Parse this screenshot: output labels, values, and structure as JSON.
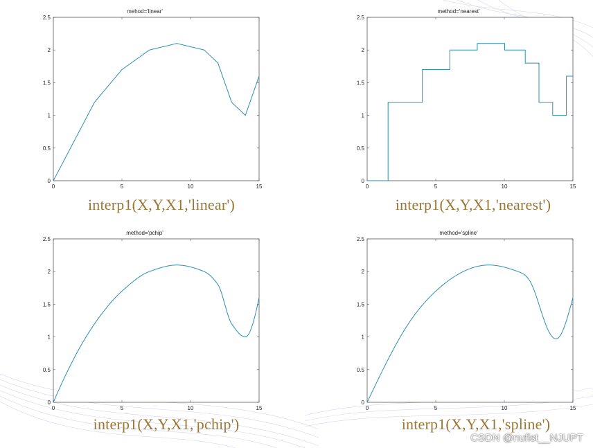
{
  "chart_data": [
    {
      "type": "line",
      "title": "mehod='linear'",
      "caption": "interp1(X,Y,X1,'linear')",
      "method": "linear",
      "xlim": [
        0,
        15
      ],
      "ylim": [
        0,
        2.5
      ],
      "xticks": [
        "0",
        "5",
        "10",
        "15"
      ],
      "yticks": [
        "0",
        "0.5",
        "1",
        "1.5",
        "2",
        "2.5"
      ],
      "x": [
        0,
        3,
        5,
        7,
        9,
        11,
        12,
        13,
        14,
        15
      ],
      "y": [
        0,
        1.2,
        1.7,
        2.0,
        2.1,
        2.0,
        1.8,
        1.2,
        1.0,
        1.6
      ],
      "color": "#2b8fb0"
    },
    {
      "type": "line",
      "title": "method='nearest'",
      "caption": "interp1(X,Y,X1,'nearest')",
      "method": "nearest",
      "xlim": [
        0,
        15
      ],
      "ylim": [
        0,
        2.5
      ],
      "xticks": [
        "0",
        "5",
        "10",
        "15"
      ],
      "yticks": [
        "0",
        "0.5",
        "1",
        "1.5",
        "2",
        "2.5"
      ],
      "x": [
        0,
        3,
        5,
        7,
        9,
        11,
        12,
        13,
        14,
        15
      ],
      "y": [
        0,
        1.2,
        1.7,
        2.0,
        2.1,
        2.0,
        1.8,
        1.2,
        1.0,
        1.6
      ],
      "color": "#2b8fb0"
    },
    {
      "type": "line",
      "title": "method='pchip'",
      "caption": "interp1(X,Y,X1,'pchip')",
      "method": "pchip",
      "xlim": [
        0,
        15
      ],
      "ylim": [
        0,
        2.5
      ],
      "xticks": [
        "0",
        "5",
        "10",
        "15"
      ],
      "yticks": [
        "0",
        "0.5",
        "1",
        "1.5",
        "2",
        "2.5"
      ],
      "x": [
        0,
        3,
        5,
        7,
        9,
        11,
        12,
        13,
        14,
        15
      ],
      "y": [
        0,
        1.2,
        1.7,
        2.0,
        2.1,
        2.0,
        1.8,
        1.2,
        1.0,
        1.6
      ],
      "color": "#2b8fb0"
    },
    {
      "type": "line",
      "title": "method='spline'",
      "caption": "interp1(X,Y,X1,'spline')",
      "method": "spline",
      "xlim": [
        0,
        15
      ],
      "ylim": [
        0,
        2.5
      ],
      "xticks": [
        "0",
        "5",
        "10",
        "15"
      ],
      "yticks": [
        "0",
        "0.5",
        "1",
        "1.5",
        "2",
        "2.5"
      ],
      "x": [
        0,
        3,
        5,
        7,
        9,
        11,
        12,
        13,
        14,
        15
      ],
      "y": [
        0,
        1.2,
        1.7,
        2.0,
        2.1,
        2.0,
        1.8,
        1.2,
        1.0,
        1.6
      ],
      "color": "#2b8fb0"
    }
  ],
  "watermark": "CSDN @nufist__NJUPT"
}
